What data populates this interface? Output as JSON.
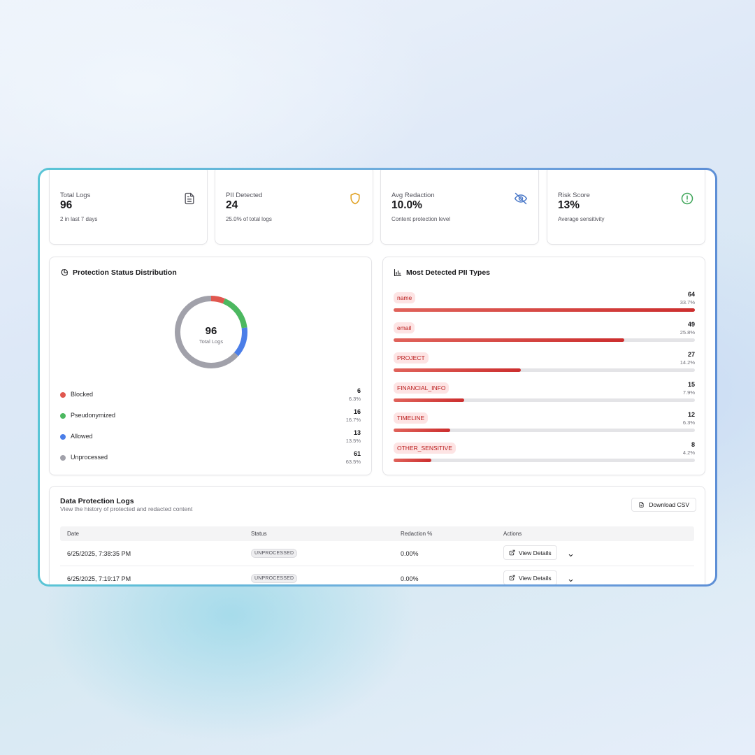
{
  "stats": [
    {
      "label": "Total Logs",
      "value": "96",
      "sub": "2 in last 7 days",
      "icon": "document-icon",
      "color": "#52525b"
    },
    {
      "label": "PII Detected",
      "value": "24",
      "sub": "25.0% of total logs",
      "icon": "shield-icon",
      "color": "#e0a020"
    },
    {
      "label": "Avg Redaction",
      "value": "10.0%",
      "sub": "Content protection level",
      "icon": "eye-off-icon",
      "color": "#4a78c8"
    },
    {
      "label": "Risk Score",
      "value": "13%",
      "sub": "Average sensitivity",
      "icon": "alert-circle-icon",
      "color": "#3fa65a"
    }
  ],
  "protection": {
    "title": "Protection Status Distribution",
    "center_value": "96",
    "center_label": "Total Logs",
    "items": [
      {
        "name": "Blocked",
        "count": 6,
        "count_label": "6",
        "pct": "6.3%",
        "color": "#e0574f"
      },
      {
        "name": "Pseudonymized",
        "count": 16,
        "count_label": "16",
        "pct": "16.7%",
        "color": "#4cb860"
      },
      {
        "name": "Allowed",
        "count": 13,
        "count_label": "13",
        "pct": "13.5%",
        "color": "#4b7ee8"
      },
      {
        "name": "Unprocessed",
        "count": 61,
        "count_label": "61",
        "pct": "63.5%",
        "color": "#a1a1aa"
      }
    ]
  },
  "pii": {
    "title": "Most Detected PII Types",
    "max": 64,
    "items": [
      {
        "name": "name",
        "count": 64,
        "count_label": "64",
        "pct": "33.7%"
      },
      {
        "name": "email",
        "count": 49,
        "count_label": "49",
        "pct": "25.8%"
      },
      {
        "name": "PROJECT",
        "count": 27,
        "count_label": "27",
        "pct": "14.2%"
      },
      {
        "name": "FINANCIAL_INFO",
        "count": 15,
        "count_label": "15",
        "pct": "7.9%"
      },
      {
        "name": "TIMELINE",
        "count": 12,
        "count_label": "12",
        "pct": "6.3%"
      },
      {
        "name": "OTHER_SENSITIVE",
        "count": 8,
        "count_label": "8",
        "pct": "4.2%"
      }
    ]
  },
  "logs": {
    "title": "Data Protection Logs",
    "subtitle": "View the history of protected and redacted content",
    "download_label": "Download CSV",
    "columns": [
      "Date",
      "Status",
      "Redaction %",
      "Actions"
    ],
    "rows": [
      {
        "date": "6/25/2025, 7:38:35 PM",
        "status": "UNPROCESSED",
        "redaction": "0.00%",
        "action": "View Details"
      },
      {
        "date": "6/25/2025, 7:19:17 PM",
        "status": "UNPROCESSED",
        "redaction": "0.00%",
        "action": "View Details"
      }
    ]
  }
}
